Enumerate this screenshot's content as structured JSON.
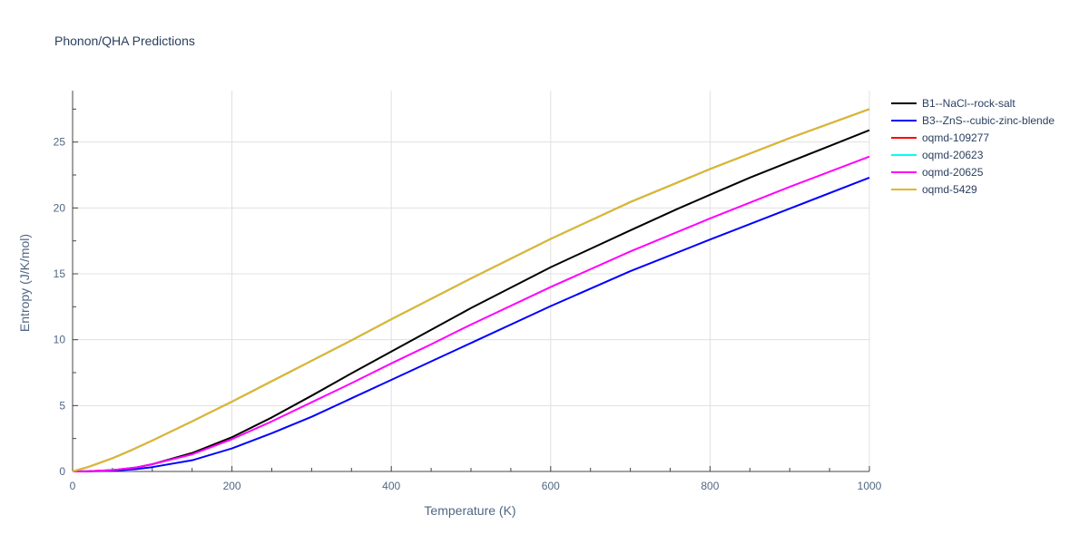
{
  "chart_data": {
    "type": "line",
    "title": "Phonon/QHA Predictions",
    "xlabel": "Temperature (K)",
    "ylabel": "Entropy (J/K/mol)",
    "xlim": [
      0,
      1000
    ],
    "ylim": [
      0,
      28.9
    ],
    "xticks": [
      0,
      200,
      400,
      600,
      800,
      1000
    ],
    "yticks": [
      0,
      5,
      10,
      15,
      20,
      25
    ],
    "grid": true,
    "legend_position": "top-right",
    "series": [
      {
        "name": "B1--NaCl--rock-salt",
        "color": "#000000",
        "x": [
          0,
          20,
          50,
          80,
          100,
          150,
          200,
          250,
          300,
          350,
          400,
          450,
          500,
          600,
          700,
          760,
          800,
          850,
          900,
          950,
          1000
        ],
        "y": [
          0,
          0.02,
          0.1,
          0.3,
          0.55,
          1.4,
          2.6,
          4.1,
          5.75,
          7.45,
          9.1,
          10.75,
          12.4,
          15.5,
          18.3,
          19.95,
          21.0,
          22.3,
          23.5,
          24.7,
          25.9
        ]
      },
      {
        "name": "B3--ZnS--cubic-zinc-blende",
        "color": "#0000ff",
        "x": [
          0,
          20,
          50,
          80,
          100,
          150,
          200,
          250,
          300,
          350,
          400,
          450,
          500,
          600,
          700,
          800,
          900,
          1000
        ],
        "y": [
          0,
          0.01,
          0.05,
          0.18,
          0.33,
          0.85,
          1.75,
          2.9,
          4.15,
          5.55,
          6.95,
          8.35,
          9.75,
          12.55,
          15.2,
          17.6,
          19.95,
          22.3
        ]
      },
      {
        "name": "oqmd-109277",
        "color": "#ff0000",
        "x": [
          0,
          20,
          50,
          75,
          100,
          150,
          200,
          250,
          300,
          350,
          400,
          450,
          500,
          600,
          700,
          800,
          900,
          1000
        ],
        "y": [
          0,
          0.35,
          1.0,
          1.65,
          2.35,
          3.8,
          5.3,
          6.85,
          8.4,
          9.95,
          11.55,
          13.1,
          14.65,
          17.65,
          20.45,
          22.95,
          25.3,
          27.5
        ]
      },
      {
        "name": "oqmd-20623",
        "color": "#00ffff",
        "x": [
          0,
          20,
          50,
          75,
          100,
          150,
          200,
          250,
          300,
          350,
          400,
          450,
          500,
          600,
          700,
          800,
          900,
          1000
        ],
        "y": [
          0,
          0.35,
          1.0,
          1.65,
          2.35,
          3.8,
          5.3,
          6.85,
          8.4,
          9.95,
          11.55,
          13.1,
          14.65,
          17.65,
          20.45,
          22.95,
          25.3,
          27.5
        ]
      },
      {
        "name": "oqmd-20625",
        "color": "#ff00ff",
        "x": [
          0,
          20,
          50,
          80,
          100,
          150,
          200,
          250,
          300,
          350,
          400,
          450,
          500,
          600,
          700,
          800,
          900,
          1000
        ],
        "y": [
          0,
          0.02,
          0.1,
          0.3,
          0.55,
          1.3,
          2.45,
          3.8,
          5.25,
          6.7,
          8.2,
          9.65,
          11.15,
          14.0,
          16.7,
          19.2,
          21.6,
          23.9
        ]
      },
      {
        "name": "oqmd-5429",
        "color": "#e5b52a",
        "x": [
          0,
          20,
          50,
          75,
          100,
          150,
          200,
          250,
          300,
          350,
          400,
          450,
          500,
          600,
          700,
          800,
          900,
          1000
        ],
        "y": [
          0,
          0.35,
          1.0,
          1.65,
          2.35,
          3.8,
          5.3,
          6.85,
          8.4,
          9.95,
          11.55,
          13.1,
          14.65,
          17.65,
          20.45,
          22.95,
          25.3,
          27.5
        ]
      }
    ]
  }
}
